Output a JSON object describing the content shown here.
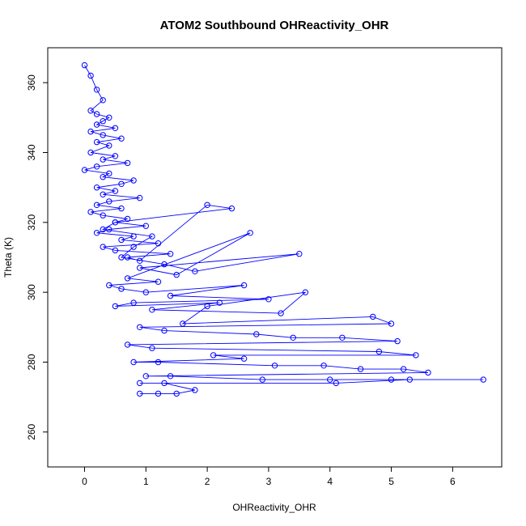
{
  "chart_data": {
    "type": "scatter",
    "title": "ATOM2 Southbound OHReactivity_OHR",
    "xlabel": "OHReactivity_OHR",
    "ylabel": "Theta (K)",
    "xlim": [
      -0.6,
      6.8
    ],
    "ylim": [
      250,
      370
    ],
    "x_ticks": [
      0,
      1,
      2,
      3,
      4,
      5,
      6
    ],
    "y_ticks": [
      260,
      280,
      300,
      320,
      340,
      360
    ],
    "grid": false,
    "legend": "none",
    "marker": "open-circle",
    "connected": true,
    "color": "#0000ff",
    "series": [
      {
        "x": [
          0.0,
          0.1,
          0.2,
          0.3,
          0.1,
          0.2,
          0.4,
          0.3,
          0.2,
          0.5,
          0.1,
          0.3,
          0.6,
          0.2,
          0.4,
          0.1,
          0.5,
          0.3,
          0.7,
          0.2,
          0.0,
          0.4,
          0.3,
          0.8,
          0.6,
          0.2,
          0.5,
          0.3,
          0.9,
          0.4,
          0.2,
          0.6,
          0.1,
          0.3,
          0.7,
          0.5,
          1.0,
          0.4,
          0.2,
          0.8,
          0.6,
          1.2,
          0.3,
          0.5,
          1.4,
          0.7,
          0.9,
          2.0,
          2.4,
          0.5,
          0.3,
          1.1,
          0.8,
          0.6,
          1.3,
          1.8,
          3.5,
          0.9,
          1.5,
          2.7,
          0.7,
          1.2,
          0.4,
          0.6,
          1.0,
          2.6,
          1.4,
          3.0,
          0.8,
          0.5,
          2.2,
          1.1,
          3.2,
          3.6,
          2.0,
          1.6,
          4.7,
          5.0,
          0.9,
          1.3,
          2.8,
          3.4,
          4.2,
          5.1,
          0.7,
          1.1,
          4.8,
          5.4,
          2.1,
          2.6,
          0.8,
          1.2,
          3.1,
          3.9,
          4.5,
          5.2,
          5.6,
          1.0,
          1.4,
          2.9,
          4.0,
          5.0,
          6.5,
          5.3,
          4.1,
          0.9,
          1.3,
          1.8,
          1.5,
          0.9,
          1.2
        ],
        "y": [
          365,
          362,
          358,
          355,
          352,
          351,
          350,
          349,
          348,
          347,
          346,
          345,
          344,
          343,
          342,
          340,
          339,
          338,
          337,
          336,
          335,
          334,
          333,
          332,
          331,
          330,
          329,
          328,
          327,
          326,
          325,
          324,
          323,
          322,
          321,
          320,
          319,
          318,
          317,
          316,
          315,
          314,
          313,
          312,
          311,
          310,
          309,
          325,
          324,
          320,
          318,
          316,
          313,
          310,
          308,
          306,
          311,
          307,
          305,
          317,
          304,
          303,
          302,
          301,
          300,
          302,
          299,
          298,
          297,
          296,
          297,
          295,
          294,
          300,
          296,
          291,
          293,
          291,
          290,
          289,
          288,
          287,
          287,
          286,
          285,
          284,
          283,
          282,
          282,
          281,
          280,
          280,
          279,
          279,
          278,
          278,
          277,
          276,
          276,
          275,
          275,
          275,
          275,
          275,
          274,
          274,
          274,
          272,
          271,
          271,
          271
        ]
      }
    ]
  }
}
